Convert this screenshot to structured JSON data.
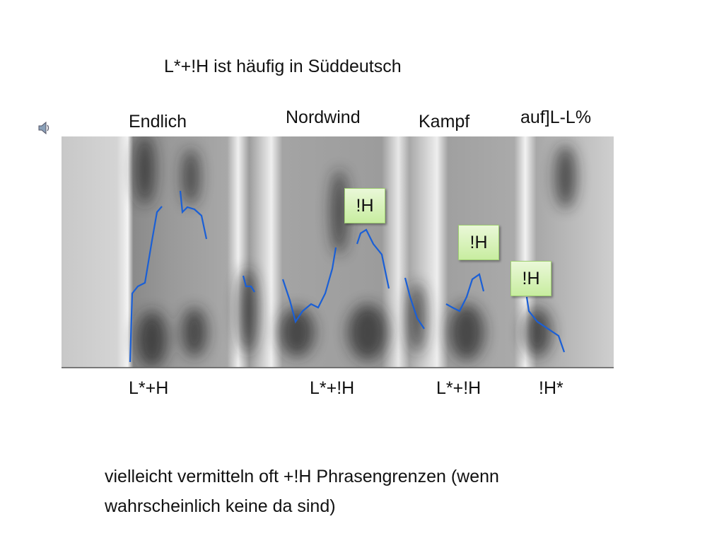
{
  "title": "L*+!H ist häufig in Süddeutsch",
  "words": [
    "Endlich",
    "Nordwind",
    "Kampf",
    "auf]L-L%"
  ],
  "accent_boxes": [
    "!H",
    "!H",
    "!H"
  ],
  "tones": [
    "L*+H",
    "L*+!H",
    "L*+!H",
    "!H*"
  ],
  "note": {
    "lines": [
      "vielleicht vermitteln oft +!H Phrasengrenzen (wenn",
      "wahrscheinlich keine da sind)"
    ]
  }
}
